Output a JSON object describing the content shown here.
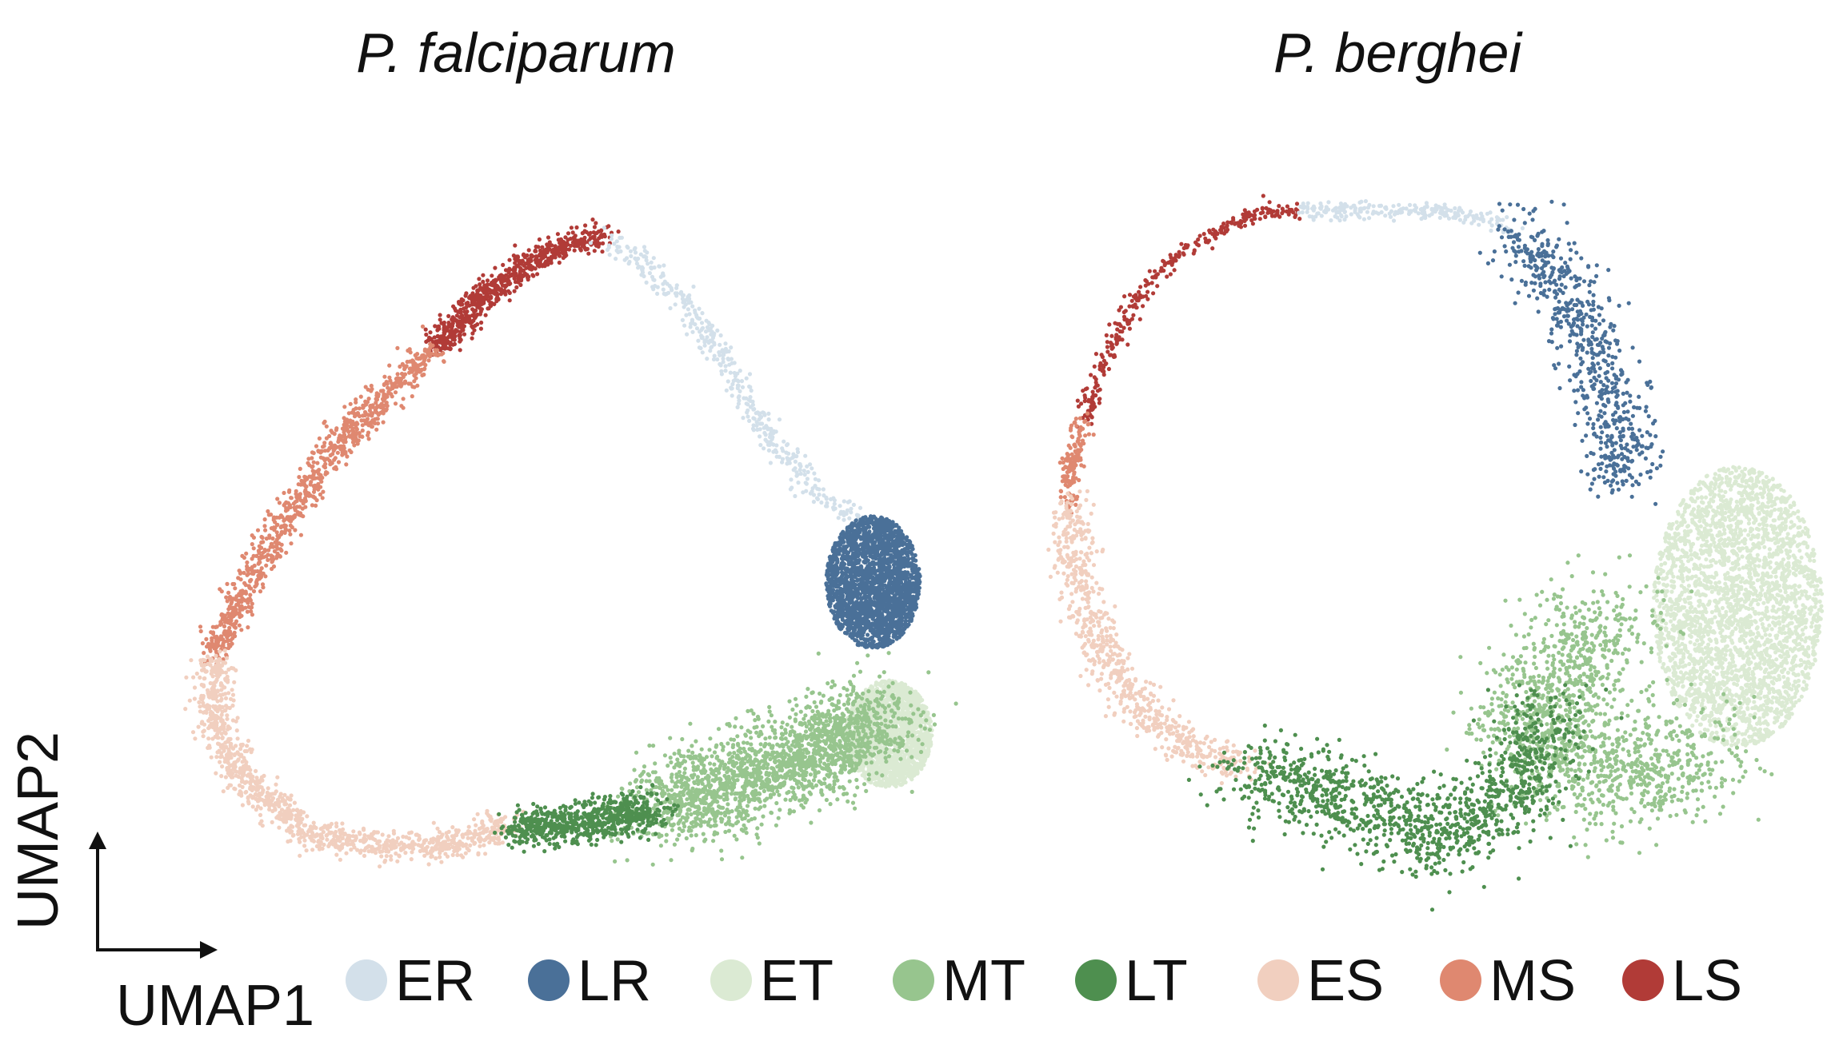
{
  "chart_data": {
    "type": "scatter",
    "xlabel": "UMAP1",
    "ylabel": "UMAP2",
    "grid": false,
    "legend_placement": "bottom",
    "legend": [
      {
        "key": "ER",
        "label": "ER",
        "color": "#d3e0ea"
      },
      {
        "key": "LR",
        "label": "LR",
        "color": "#4a7098"
      },
      {
        "key": "ET",
        "label": "ET",
        "color": "#dbead3"
      },
      {
        "key": "MT",
        "label": "MT",
        "color": "#97c58e"
      },
      {
        "key": "LT",
        "label": "LT",
        "color": "#4e8f4f"
      },
      {
        "key": "ES",
        "label": "ES",
        "color": "#f1cfbf"
      },
      {
        "key": "MS",
        "label": "MS",
        "color": "#df8870"
      },
      {
        "key": "LS",
        "label": "LS",
        "color": "#b13b37"
      }
    ],
    "panels": [
      {
        "title": "P. falciparum",
        "stages": [
          {
            "key": "LS",
            "path": [
              [
                0.575,
                0.03
              ],
              [
                0.5,
                0.06
              ],
              [
                0.43,
                0.12
              ],
              [
                0.36,
                0.21
              ]
            ],
            "spread": 0.01,
            "count": 700,
            "mode": "line"
          },
          {
            "key": "MS",
            "path": [
              [
                0.36,
                0.21
              ],
              [
                0.25,
                0.34
              ],
              [
                0.15,
                0.52
              ],
              [
                0.09,
                0.66
              ],
              [
                0.08,
                0.7
              ]
            ],
            "spread": 0.011,
            "count": 900,
            "mode": "line"
          },
          {
            "key": "ES",
            "path": [
              [
                0.08,
                0.7
              ],
              [
                0.08,
                0.8
              ],
              [
                0.12,
                0.9
              ],
              [
                0.2,
                0.98
              ],
              [
                0.3,
                1.0
              ],
              [
                0.4,
                0.99
              ],
              [
                0.46,
                0.96
              ]
            ],
            "spread": 0.012,
            "count": 1100,
            "mode": "line"
          },
          {
            "key": "ER",
            "path": [
              [
                0.575,
                0.03
              ],
              [
                0.62,
                0.07
              ],
              [
                0.68,
                0.14
              ],
              [
                0.74,
                0.25
              ],
              [
                0.79,
                0.35
              ],
              [
                0.84,
                0.43
              ],
              [
                0.9,
                0.48
              ]
            ],
            "spread": 0.009,
            "count": 420,
            "mode": "line"
          },
          {
            "key": "LR",
            "center": [
              0.92,
              0.58
            ],
            "radii": [
              0.06,
              0.105
            ],
            "count": 2200,
            "mode": "blob"
          },
          {
            "key": "ET",
            "center": [
              0.94,
              0.82
            ],
            "radii": [
              0.055,
              0.085
            ],
            "count": 1800,
            "mode": "blob"
          },
          {
            "key": "MT",
            "path": [
              [
                0.93,
                0.79
              ],
              [
                0.84,
                0.85
              ],
              [
                0.74,
                0.9
              ],
              [
                0.64,
                0.94
              ]
            ],
            "spread": 0.035,
            "count": 1900,
            "mode": "line"
          },
          {
            "key": "LT",
            "path": [
              [
                0.64,
                0.94
              ],
              [
                0.55,
                0.96
              ],
              [
                0.46,
                0.97
              ]
            ],
            "spread": 0.016,
            "count": 700,
            "mode": "line"
          }
        ]
      },
      {
        "title": "P. berghei",
        "stages": [
          {
            "key": "LS",
            "path": [
              [
                0.32,
                0.01
              ],
              [
                0.25,
                0.02
              ],
              [
                0.16,
                0.08
              ],
              [
                0.1,
                0.16
              ],
              [
                0.06,
                0.26
              ],
              [
                0.04,
                0.34
              ]
            ],
            "spread": 0.006,
            "count": 320,
            "mode": "line"
          },
          {
            "key": "MS",
            "path": [
              [
                0.04,
                0.34
              ],
              [
                0.02,
                0.42
              ],
              [
                0.02,
                0.47
              ]
            ],
            "spread": 0.007,
            "count": 140,
            "mode": "line"
          },
          {
            "key": "ES",
            "path": [
              [
                0.02,
                0.47
              ],
              [
                0.03,
                0.6
              ],
              [
                0.07,
                0.72
              ],
              [
                0.12,
                0.8
              ],
              [
                0.19,
                0.86
              ],
              [
                0.25,
                0.88
              ]
            ],
            "spread": 0.015,
            "count": 700,
            "mode": "line"
          },
          {
            "key": "ER",
            "path": [
              [
                0.32,
                0.01
              ],
              [
                0.45,
                0.01
              ],
              [
                0.56,
                0.02
              ],
              [
                0.6,
                0.04
              ]
            ],
            "spread": 0.007,
            "count": 230,
            "mode": "line"
          },
          {
            "key": "LR",
            "path": [
              [
                0.6,
                0.04
              ],
              [
                0.66,
                0.12
              ],
              [
                0.7,
                0.22
              ],
              [
                0.73,
                0.34
              ],
              [
                0.74,
                0.44
              ]
            ],
            "spread": 0.023,
            "count": 650,
            "mode": "line"
          },
          {
            "key": "ET",
            "center": [
              0.89,
              0.63
            ],
            "radii": [
              0.11,
              0.22
            ],
            "count": 2800,
            "mode": "blob"
          },
          {
            "key": "MT",
            "path": [
              [
                0.72,
                0.64
              ],
              [
                0.66,
                0.74
              ],
              [
                0.62,
                0.84
              ],
              [
                0.7,
                0.9
              ],
              [
                0.84,
                0.86
              ]
            ],
            "spread": 0.045,
            "count": 1400,
            "mode": "line"
          },
          {
            "key": "LT",
            "path": [
              [
                0.25,
                0.88
              ],
              [
                0.35,
                0.92
              ],
              [
                0.43,
                0.96
              ],
              [
                0.51,
                1.0
              ],
              [
                0.6,
                0.92
              ],
              [
                0.64,
                0.8
              ]
            ],
            "spread": 0.032,
            "count": 1200,
            "mode": "line"
          }
        ]
      }
    ]
  }
}
